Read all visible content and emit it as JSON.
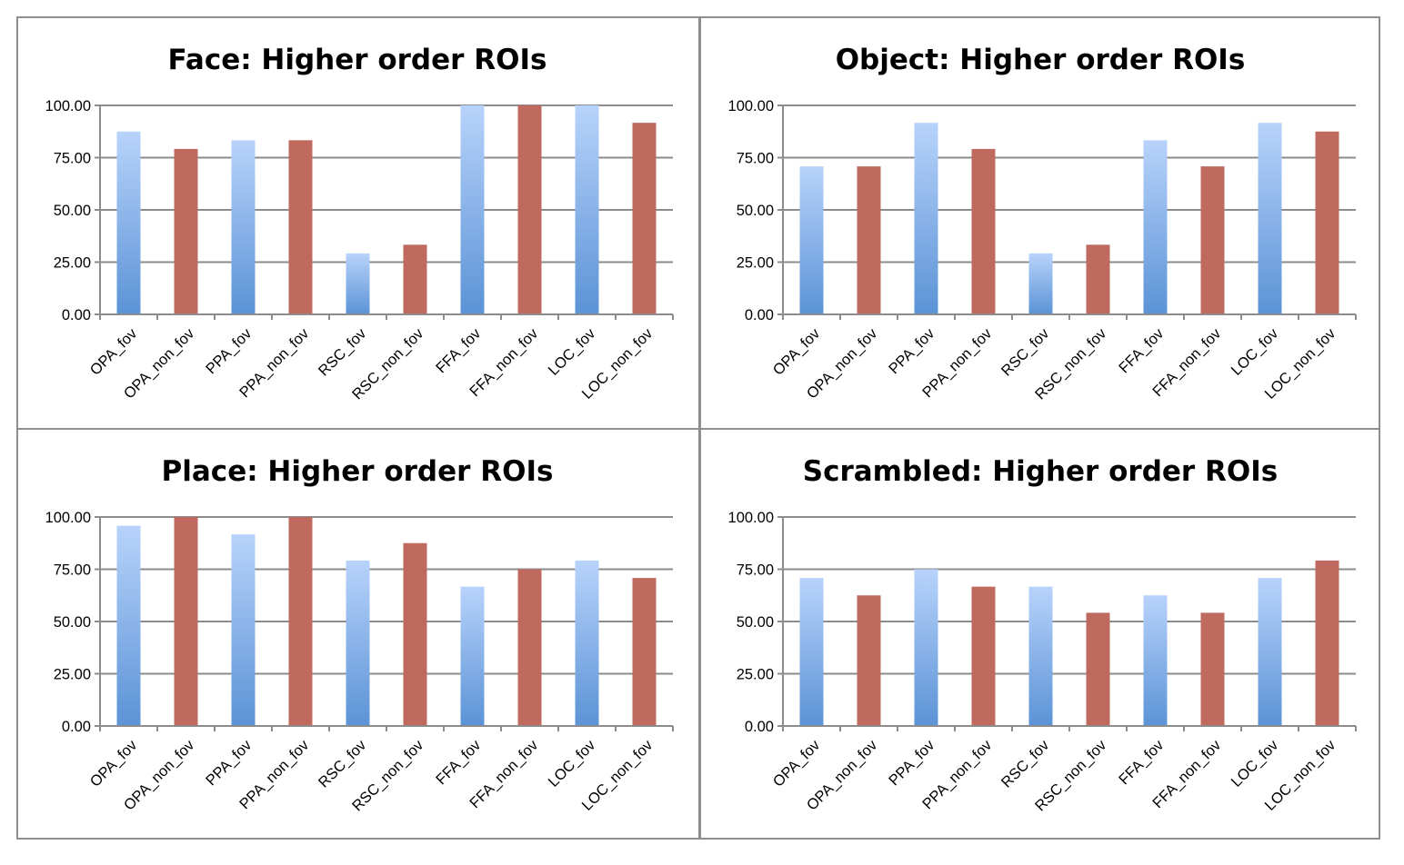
{
  "colors": {
    "fov_light": "#b8d3fb",
    "fov_dark": "#5b93d6",
    "non_fov": "#c06a5f",
    "grid": "#8c8c8c",
    "border": "#8e8e8e"
  },
  "chart_data": [
    {
      "type": "bar",
      "title": "Face: Higher order ROIs",
      "categories": [
        "OPA_fov",
        "OPA_non_fov",
        "PPA_fov",
        "PPA_non_fov",
        "RSC_fov",
        "RSC_non_fov",
        "FFA_fov",
        "FFA_non_fov",
        "LOC_fov",
        "LOC_non_fov"
      ],
      "values": [
        87.5,
        79.17,
        83.33,
        83.33,
        29.17,
        33.33,
        100,
        100,
        100,
        91.67
      ],
      "yticks": [
        "0.00",
        "25.00",
        "50.00",
        "75.00",
        "100.00"
      ],
      "ylim": [
        0,
        100
      ],
      "grid": true
    },
    {
      "type": "bar",
      "title": "Object: Higher order ROIs",
      "categories": [
        "OPA_fov",
        "OPA_non_fov",
        "PPA_fov",
        "PPA_non_fov",
        "RSC_fov",
        "RSC_non_fov",
        "FFA_fov",
        "FFA_non_fov",
        "LOC_fov",
        "LOC_non_fov"
      ],
      "values": [
        70.83,
        70.83,
        91.67,
        79.17,
        29.17,
        33.33,
        83.33,
        70.83,
        91.67,
        87.5
      ],
      "yticks": [
        "0.00",
        "25.00",
        "50.00",
        "75.00",
        "100.00"
      ],
      "ylim": [
        0,
        100
      ],
      "grid": true
    },
    {
      "type": "bar",
      "title": "Place: Higher order ROIs",
      "categories": [
        "OPA_fov",
        "OPA_non_fov",
        "PPA_fov",
        "PPA_non_fov",
        "RSC_fov",
        "RSC_non_fov",
        "FFA_fov",
        "FFA_non_fov",
        "LOC_fov",
        "LOC_non_fov"
      ],
      "values": [
        95.83,
        100,
        91.67,
        100,
        79.17,
        87.5,
        66.67,
        75,
        79.17,
        70.83
      ],
      "yticks": [
        "0.00",
        "25.00",
        "50.00",
        "75.00",
        "100.00"
      ],
      "ylim": [
        0,
        100
      ],
      "grid": true
    },
    {
      "type": "bar",
      "title": "Scrambled: Higher order ROIs",
      "categories": [
        "OPA_fov",
        "OPA_non_fov",
        "PPA_fov",
        "PPA_non_fov",
        "RSC_fov",
        "RSC_non_fov",
        "FFA_fov",
        "FFA_non_fov",
        "LOC_fov",
        "LOC_non_fov"
      ],
      "values": [
        70.83,
        62.5,
        75,
        66.67,
        66.67,
        54.17,
        62.5,
        54.17,
        70.83,
        79.17
      ],
      "yticks": [
        "0.00",
        "25.00",
        "50.00",
        "75.00",
        "100.00"
      ],
      "ylim": [
        0,
        100
      ],
      "grid": true
    }
  ]
}
